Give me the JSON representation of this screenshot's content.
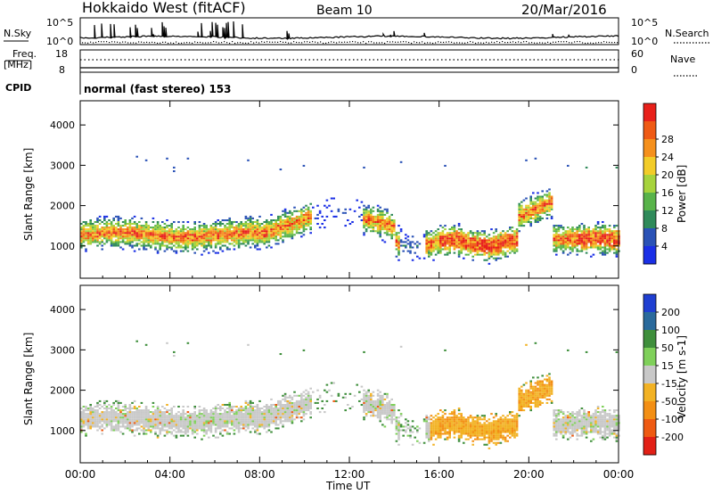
{
  "header": {
    "title": "Hokkaido West (fitACF)",
    "beam": "Beam 10",
    "date": "20/Mar/2016"
  },
  "top_panels": {
    "nsky_label": "N.Sky",
    "nsky_ticks": [
      "10^5",
      "10^0"
    ],
    "nsearch_label": "N.Search",
    "nsearch_ticks": [
      "10^5",
      "10^0"
    ],
    "freq_label_line1": "Freq.",
    "freq_label_line2": "[MHz]",
    "freq_ticks": [
      "18",
      "8"
    ],
    "nave_label": "Nave",
    "nave_ticks": [
      "60",
      "0"
    ],
    "cpid_label": "CPID",
    "cpid_text": "normal (fast stereo) 153"
  },
  "colors": {
    "power_scale": [
      "#1a2fe6",
      "#2a52b6",
      "#2f8a5a",
      "#58b34a",
      "#a6d33c",
      "#f2cc28",
      "#f5901c",
      "#ef5a14",
      "#e8201a"
    ],
    "velocity_scale": [
      "#1f3fd1",
      "#2a6a9c",
      "#3f8f3c",
      "#7fd05a",
      "#c8c8c8",
      "#f2b224",
      "#f38f14",
      "#ee5a12",
      "#e22016"
    ]
  },
  "chart_data": [
    {
      "type": "heatmap",
      "name": "power",
      "ylabel": "Slant Range [km]",
      "yticks": [
        "1000",
        "2000",
        "3000",
        "4000"
      ],
      "ylim": [
        200,
        4600
      ],
      "colorbar_label": "Power [dB]",
      "colorbar_ticks": [
        "4",
        "8",
        "12",
        "16",
        "20",
        "24",
        "28"
      ],
      "colorbar_range": [
        0,
        30
      ]
    },
    {
      "type": "heatmap",
      "name": "velocity",
      "ylabel": "Slant Range [km]",
      "yticks": [
        "1000",
        "2000",
        "3000",
        "4000"
      ],
      "ylim": [
        200,
        4600
      ],
      "colorbar_label": "Velocity [m s-1]",
      "colorbar_ticks": [
        "200",
        "100",
        "50",
        "15",
        "-15",
        "-50",
        "-100",
        "-200"
      ],
      "xlabel": "Time UT",
      "xticks": [
        "00:00",
        "04:00",
        "08:00",
        "12:00",
        "16:00",
        "20:00",
        "00:00"
      ],
      "xlim_hours": [
        0,
        24
      ]
    }
  ]
}
